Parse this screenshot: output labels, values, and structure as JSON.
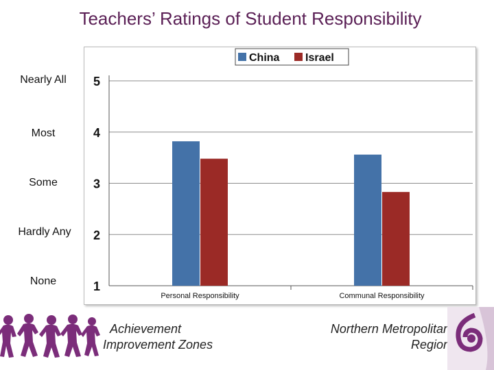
{
  "slide": {
    "title": "Teachers’ Ratings of Student Responsibility",
    "scale_labels": [
      "Nearly All",
      "Most",
      "Some",
      "Hardly Any",
      "None"
    ],
    "footer_left": [
      "Achievement",
      "Improvement Zones"
    ],
    "footer_right": [
      "Northern Metropolitan",
      "Region"
    ]
  },
  "colors": {
    "title": "#5a1f55",
    "china": "#4472a8",
    "israel": "#9b2a26",
    "logo_purple": "#7b2d7a"
  },
  "icons": [
    "children-silhouettes-icon",
    "region-logo-icon"
  ],
  "chart_data": {
    "type": "bar",
    "categories": [
      "Personal Responsibility",
      "Communal Responsibility"
    ],
    "series": [
      {
        "name": "China",
        "color": "#4472a8",
        "values": [
          3.82,
          3.56
        ]
      },
      {
        "name": "Israel",
        "color": "#9b2a26",
        "values": [
          3.48,
          2.83
        ]
      }
    ],
    "ylim": [
      1,
      5
    ],
    "y_ticks": [
      1,
      2,
      3,
      4,
      5
    ],
    "grid": true,
    "legend": "top"
  }
}
